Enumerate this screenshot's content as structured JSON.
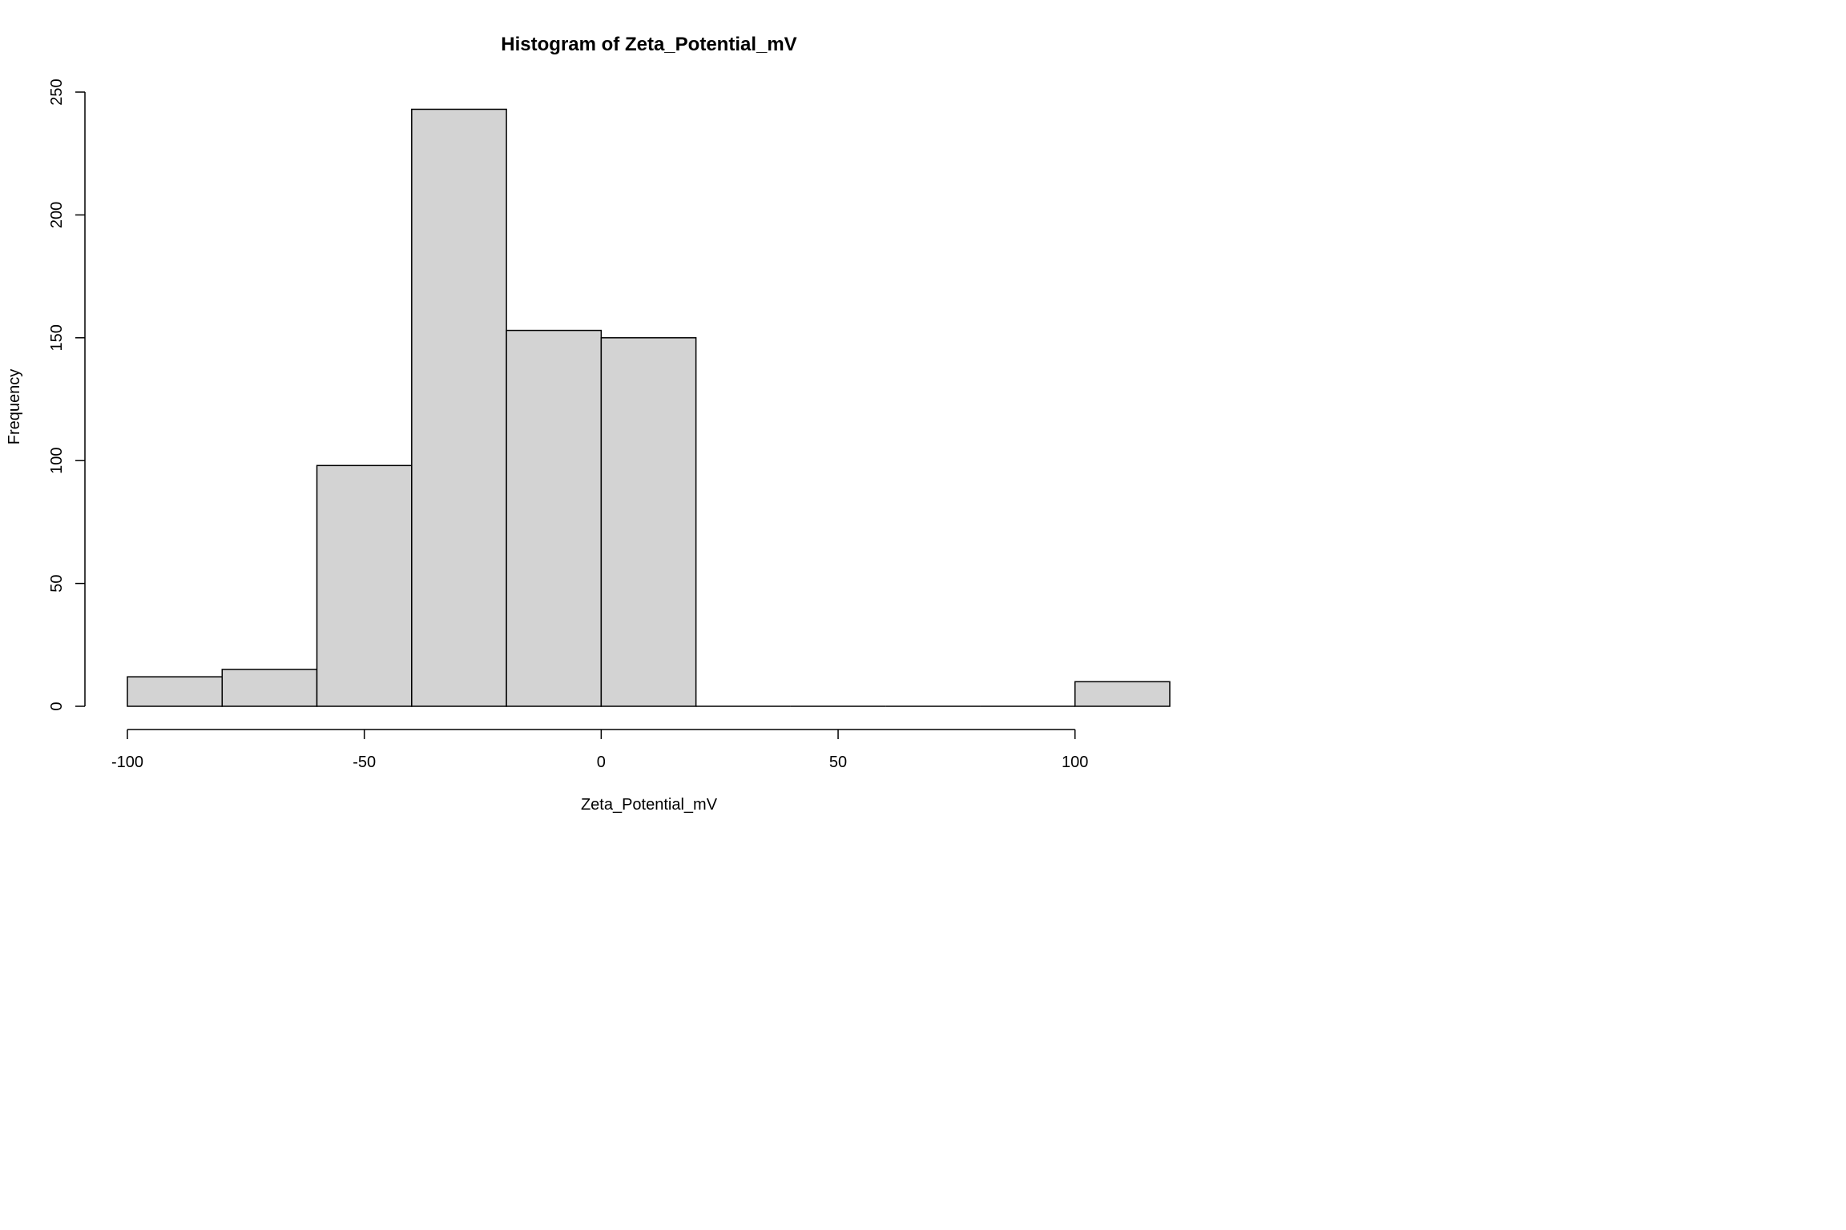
{
  "chart_data": {
    "type": "bar",
    "title": "Histogram of Zeta_Potential_mV",
    "xlabel": "Zeta_Potential_mV",
    "ylabel": "Frequency",
    "bins": [
      {
        "from": -100,
        "to": -80,
        "count": 12
      },
      {
        "from": -80,
        "to": -60,
        "count": 15
      },
      {
        "from": -60,
        "to": -40,
        "count": 98
      },
      {
        "from": -40,
        "to": -20,
        "count": 243
      },
      {
        "from": -20,
        "to": 0,
        "count": 153
      },
      {
        "from": 0,
        "to": 20,
        "count": 150
      },
      {
        "from": 20,
        "to": 40,
        "count": 0
      },
      {
        "from": 40,
        "to": 60,
        "count": 0
      },
      {
        "from": 60,
        "to": 80,
        "count": 0
      },
      {
        "from": 80,
        "to": 100,
        "count": 0
      },
      {
        "from": 100,
        "to": 120,
        "count": 10
      }
    ],
    "xticks": [
      -100,
      -50,
      0,
      50,
      100
    ],
    "yticks": [
      0,
      50,
      100,
      150,
      200,
      250
    ],
    "xlim": [
      -100,
      120
    ],
    "ylim": [
      0,
      250
    ],
    "grid": false,
    "bar_fill": "#d3d3d3",
    "bar_stroke": "#000000"
  }
}
